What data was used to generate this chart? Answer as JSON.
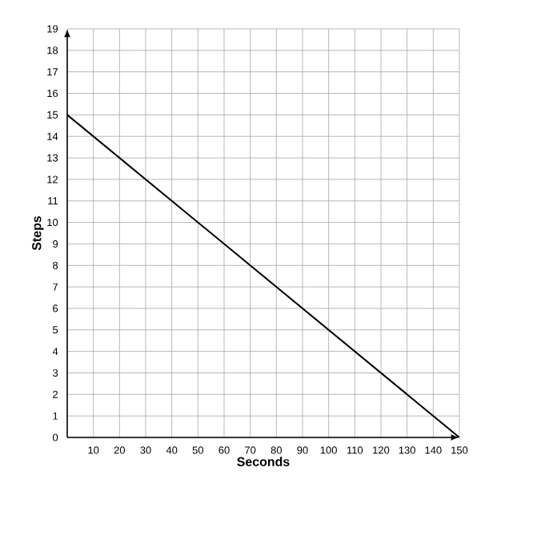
{
  "chart_data": {
    "type": "line",
    "xlabel": "Seconds",
    "ylabel": "Steps",
    "x": [
      0,
      150
    ],
    "values": [
      15,
      0
    ],
    "color": "#000000",
    "xlim": [
      0,
      150
    ],
    "ylim": [
      0,
      19
    ],
    "xticks": [
      10,
      20,
      30,
      40,
      50,
      60,
      70,
      80,
      90,
      100,
      110,
      120,
      130,
      140,
      150
    ],
    "yticks": [
      0,
      1,
      2,
      3,
      4,
      5,
      6,
      7,
      8,
      9,
      10,
      11,
      12,
      13,
      14,
      15,
      16,
      17,
      18,
      19
    ],
    "grid": true,
    "marker": "none",
    "line_style": "solid"
  }
}
